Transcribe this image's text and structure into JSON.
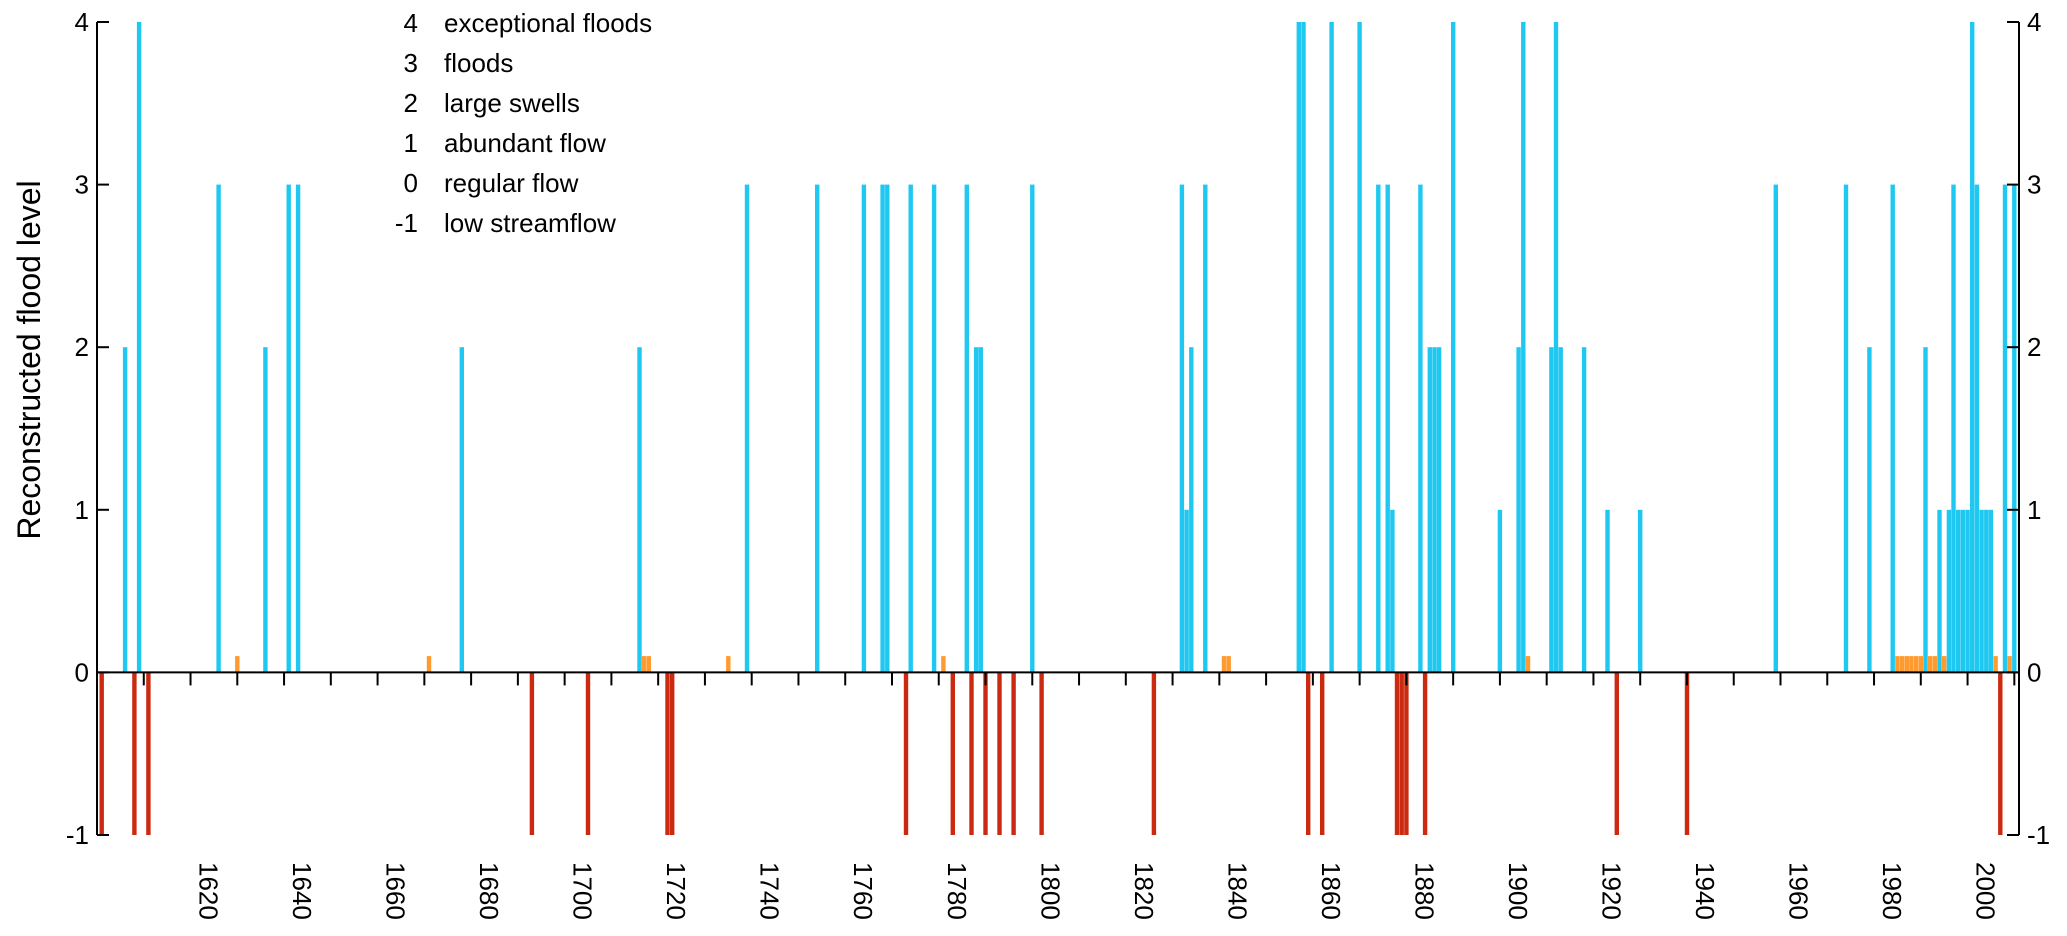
{
  "chart_data": {
    "type": "bar",
    "ylabel": "Reconstructed flood level",
    "xlabel": "",
    "xlim": [
      1600,
      2011
    ],
    "ylim": [
      -1,
      4
    ],
    "yticks": [
      "-1",
      "0",
      "1",
      "2",
      "3",
      "4"
    ],
    "xticks": [
      "1620",
      "1640",
      "1660",
      "1680",
      "1700",
      "1720",
      "1740",
      "1760",
      "1780",
      "1800",
      "1820",
      "1840",
      "1860",
      "1880",
      "1900",
      "1920",
      "1940",
      "1960",
      "1980",
      "2000"
    ],
    "legend": [
      {
        "code": "4",
        "label": "exceptional floods"
      },
      {
        "code": "3",
        "label": "floods"
      },
      {
        "code": "2",
        "label": "large swells"
      },
      {
        "code": "1",
        "label": "abundant flow"
      },
      {
        "code": "0",
        "label": "regular flow"
      },
      {
        "code": "-1",
        "label": "low streamflow"
      }
    ],
    "colors": {
      "flood": "#1ec8f0",
      "regular": "#ff9a2e",
      "low": "#cc2a10",
      "axis": "#000000"
    },
    "series": [
      {
        "name": "flood events",
        "color_key": "flood",
        "points": [
          [
            1606,
            2
          ],
          [
            1609,
            4
          ],
          [
            1626,
            3
          ],
          [
            1636,
            2
          ],
          [
            1641,
            3
          ],
          [
            1643,
            3
          ],
          [
            1678,
            2
          ],
          [
            1716,
            2
          ],
          [
            1739,
            3
          ],
          [
            1754,
            3
          ],
          [
            1764,
            3
          ],
          [
            1768,
            3
          ],
          [
            1769,
            3
          ],
          [
            1774,
            3
          ],
          [
            1779,
            3
          ],
          [
            1786,
            3
          ],
          [
            1788,
            2
          ],
          [
            1789,
            2
          ],
          [
            1800,
            3
          ],
          [
            1832,
            3
          ],
          [
            1833,
            1
          ],
          [
            1834,
            2
          ],
          [
            1837,
            3
          ],
          [
            1857,
            4
          ],
          [
            1858,
            4
          ],
          [
            1864,
            4
          ],
          [
            1870,
            4
          ],
          [
            1874,
            3
          ],
          [
            1876,
            3
          ],
          [
            1877,
            1
          ],
          [
            1883,
            3
          ],
          [
            1885,
            2
          ],
          [
            1886,
            2
          ],
          [
            1887,
            2
          ],
          [
            1890,
            4
          ],
          [
            1900,
            1
          ],
          [
            1904,
            2
          ],
          [
            1905,
            4
          ],
          [
            1911,
            2
          ],
          [
            1912,
            4
          ],
          [
            1913,
            2
          ],
          [
            1918,
            2
          ],
          [
            1923,
            1
          ],
          [
            1930,
            1
          ],
          [
            1959,
            3
          ],
          [
            1974,
            3
          ],
          [
            1979,
            2
          ],
          [
            1984,
            3
          ],
          [
            1991,
            2
          ],
          [
            1994,
            1
          ],
          [
            1996,
            1
          ],
          [
            1997,
            3
          ],
          [
            1998,
            1
          ],
          [
            1999,
            1
          ],
          [
            2000,
            1
          ],
          [
            2001,
            4
          ],
          [
            2002,
            3
          ],
          [
            2003,
            1
          ],
          [
            2004,
            1
          ],
          [
            2005,
            1
          ],
          [
            2008,
            3
          ],
          [
            2010,
            3
          ]
        ]
      },
      {
        "name": "regular flow",
        "color_key": "regular",
        "points": [
          [
            1630,
            0.1
          ],
          [
            1671,
            0.1
          ],
          [
            1717,
            0.1
          ],
          [
            1718,
            0.1
          ],
          [
            1735,
            0.1
          ],
          [
            1781,
            0.1
          ],
          [
            1841,
            0.1
          ],
          [
            1842,
            0.1
          ],
          [
            1906,
            0.1
          ],
          [
            1985,
            0.1
          ],
          [
            1986,
            0.1
          ],
          [
            1987,
            0.1
          ],
          [
            1988,
            0.1
          ],
          [
            1989,
            0.1
          ],
          [
            1990,
            0.1
          ],
          [
            1992,
            0.1
          ],
          [
            1993,
            0.1
          ],
          [
            1995,
            0.1
          ],
          [
            2006,
            0.1
          ],
          [
            2009,
            0.1
          ]
        ]
      },
      {
        "name": "low streamflow",
        "color_key": "low",
        "points": [
          [
            1601,
            -1
          ],
          [
            1608,
            -1
          ],
          [
            1611,
            -1
          ],
          [
            1693,
            -1
          ],
          [
            1705,
            -1
          ],
          [
            1722,
            -1
          ],
          [
            1723,
            -1
          ],
          [
            1773,
            -1
          ],
          [
            1783,
            -1
          ],
          [
            1787,
            -1
          ],
          [
            1790,
            -1
          ],
          [
            1793,
            -1
          ],
          [
            1796,
            -1
          ],
          [
            1802,
            -1
          ],
          [
            1826,
            -1
          ],
          [
            1859,
            -1
          ],
          [
            1862,
            -1
          ],
          [
            1878,
            -1
          ],
          [
            1879,
            -1
          ],
          [
            1880,
            -1
          ],
          [
            1884,
            -1
          ],
          [
            1925,
            -1
          ],
          [
            1940,
            -1
          ],
          [
            2007,
            -1
          ]
        ]
      }
    ]
  }
}
